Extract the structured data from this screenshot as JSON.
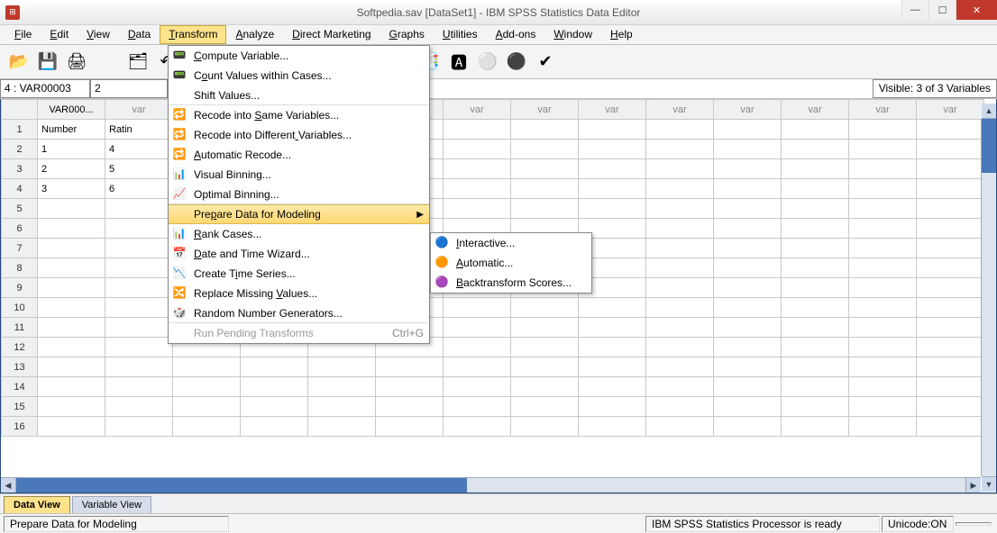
{
  "title": "Softpedia.sav [DataSet1] - IBM SPSS Statistics Data Editor",
  "menus": [
    "File",
    "Edit",
    "View",
    "Data",
    "Transform",
    "Analyze",
    "Direct Marketing",
    "Graphs",
    "Utilities",
    "Add-ons",
    "Window",
    "Help"
  ],
  "open_menu_index": 4,
  "ref": {
    "name": "4 : VAR00003",
    "value": "2"
  },
  "visible_text": "Visible: 3 of 3 Variables",
  "columns_named": [
    "VAR000..."
  ],
  "var_placeholder": "var",
  "rows": [
    [
      "Number",
      "Ratin"
    ],
    [
      "1",
      "4"
    ],
    [
      "2",
      "5"
    ],
    [
      "3",
      "6"
    ]
  ],
  "row_count": 16,
  "col_count": 14,
  "transform_menu": [
    {
      "icon": "📟",
      "label": "Compute Variable...",
      "u": 0
    },
    {
      "icon": "📟",
      "label": "Count Values within Cases...",
      "u": 1
    },
    {
      "icon": "",
      "label": "Shift Values...",
      "sep": true
    },
    {
      "icon": "🔁",
      "label": "Recode into Same Variables...",
      "u": 12
    },
    {
      "icon": "🔁",
      "label": "Recode into Different Variables...",
      "u": 21
    },
    {
      "icon": "🔁",
      "label": "Automatic Recode...",
      "u": 0
    },
    {
      "icon": "📊",
      "label": "Visual Binning..."
    },
    {
      "icon": "📈",
      "label": "Optimal Binning...",
      "sep": true
    },
    {
      "icon": "",
      "label": "Prepare Data for Modeling",
      "submenu": true,
      "highlight": true,
      "u": 3
    },
    {
      "icon": "📊",
      "label": "Rank Cases...",
      "u": 0
    },
    {
      "icon": "📅",
      "label": "Date and Time Wizard...",
      "u": 0
    },
    {
      "icon": "📉",
      "label": "Create Time Series...",
      "u": 8
    },
    {
      "icon": "🔀",
      "label": "Replace Missing Values...",
      "u": 16
    },
    {
      "icon": "🎲",
      "label": "Random Number Generators...",
      "sep": true
    },
    {
      "icon": "",
      "label": "Run Pending Transforms",
      "shortcut": "Ctrl+G",
      "disabled": true
    }
  ],
  "prepare_submenu": [
    {
      "icon": "🔵",
      "label": "Interactive...",
      "u": 0
    },
    {
      "icon": "🟠",
      "label": "Automatic...",
      "u": 0
    },
    {
      "icon": "🟣",
      "label": "Backtransform Scores...",
      "u": 0
    }
  ],
  "tabs": [
    "Data View",
    "Variable View"
  ],
  "active_tab": 0,
  "status_left": "Prepare Data for Modeling",
  "status_mid": "IBM SPSS Statistics Processor is ready",
  "status_right": "Unicode:ON",
  "toolbar_icons": [
    "📂",
    "💾",
    "🖨",
    "🗂",
    "↶",
    "↷",
    "📋",
    "🔍",
    "📈",
    "📉",
    "📊",
    "⚖",
    "📑",
    "🅰",
    "⚪",
    "⚫",
    "✔"
  ],
  "colors": {
    "accent": "#ffe38c",
    "border": "#254a7b",
    "close": "#c0392b"
  }
}
